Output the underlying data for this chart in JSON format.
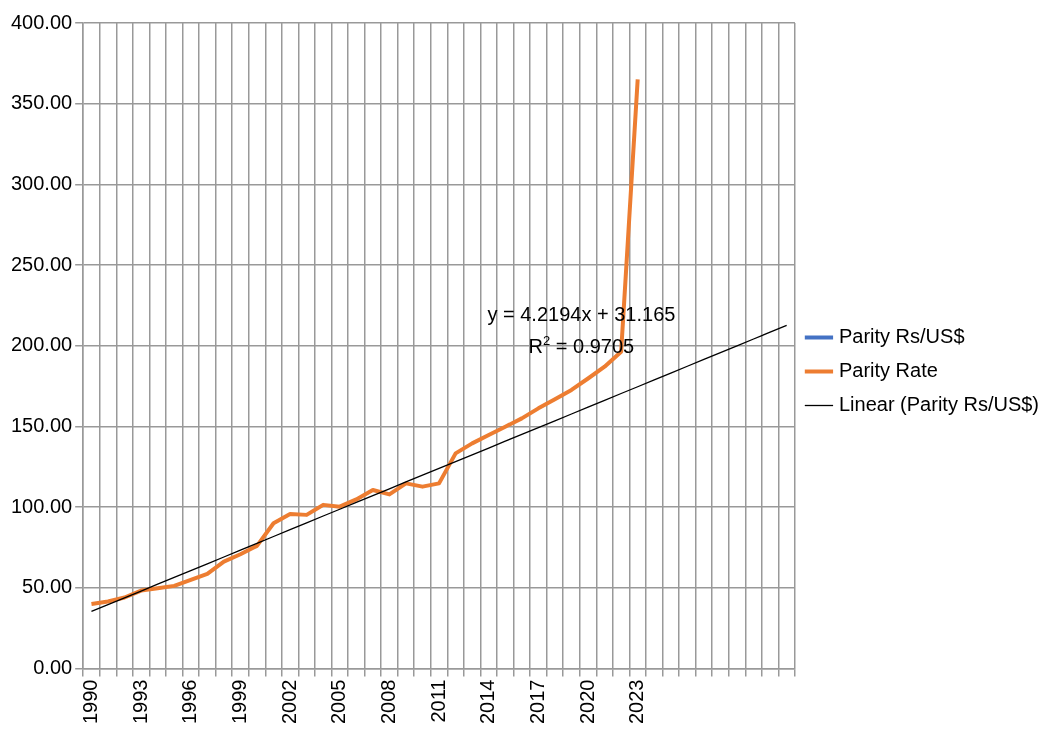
{
  "chart_data": {
    "type": "line",
    "categories": [
      "1990",
      null,
      null,
      "1993",
      null,
      null,
      "1996",
      null,
      null,
      "1999",
      null,
      null,
      "2002",
      null,
      null,
      "2005",
      null,
      null,
      "2008",
      null,
      null,
      "2011",
      null,
      null,
      "2014",
      null,
      null,
      "2017",
      null,
      null,
      "2020",
      null,
      null,
      "2023",
      null,
      null,
      null,
      null,
      null,
      null,
      null,
      null,
      null
    ],
    "series": [
      {
        "name": "Parity Rs/US$",
        "color": "#4472c4",
        "values": [
          null,
          null,
          null,
          null,
          null,
          null,
          null,
          null,
          null,
          null,
          null,
          null,
          null,
          null,
          null,
          null,
          null,
          null,
          null,
          null,
          null,
          null,
          null,
          null,
          null,
          null,
          null,
          null,
          null,
          null,
          null,
          null,
          null,
          null,
          null,
          null,
          null,
          null,
          null,
          null,
          null,
          null,
          null
        ]
      },
      {
        "name": "Parity Rate",
        "color": "#ed7d31",
        "values": [
          40,
          41.5,
          44,
          48.3,
          49.7,
          51.2,
          54.9,
          58.6,
          66.2,
          70.8,
          76,
          90,
          95.8,
          95.2,
          101.4,
          100.3,
          104.8,
          110.6,
          107.9,
          114.7,
          112.7,
          114.7,
          133.3,
          139.5,
          144.7,
          149.8,
          155,
          161.2,
          166.8,
          172.6,
          179.7,
          187,
          196.3,
          365,
          null,
          null,
          null,
          null,
          null,
          null,
          null,
          null,
          null
        ]
      },
      {
        "name": "Linear (Parity Rs/US$)",
        "type": "line",
        "color": "#000000",
        "values": [
          35.4,
          39.6,
          43.8,
          48.0,
          52.3,
          56.5,
          60.7,
          64.9,
          69.1,
          73.4,
          77.6,
          81.8,
          86.0,
          90.2,
          94.5,
          98.7,
          102.9,
          107.1,
          111.3,
          115.6,
          119.8,
          124.0,
          128.2,
          132.4,
          136.6,
          140.9,
          145.1,
          149.3,
          153.5,
          157.7,
          162.0,
          166.2,
          170.4,
          174.6,
          178.8,
          183.1,
          187.3,
          191.5,
          195.7,
          199.9,
          204.2,
          208.4,
          212.6
        ]
      }
    ],
    "ylim": [
      0,
      400
    ],
    "yticks": [
      {
        "value": 0,
        "label": "0.00"
      },
      {
        "value": 50,
        "label": "50.00"
      },
      {
        "value": 100,
        "label": "100.00"
      },
      {
        "value": 150,
        "label": "150.00"
      },
      {
        "value": 200,
        "label": "200.00"
      },
      {
        "value": 250,
        "label": "250.00"
      },
      {
        "value": 300,
        "label": "300.00"
      },
      {
        "value": 350,
        "label": "350.00"
      },
      {
        "value": 400,
        "label": "400.00"
      }
    ],
    "grid": true,
    "legend": "right",
    "marker": "none",
    "annotations": [
      "y = 4.2194x + 31.165",
      "R$^{2}$ = 0.9705"
    ]
  }
}
